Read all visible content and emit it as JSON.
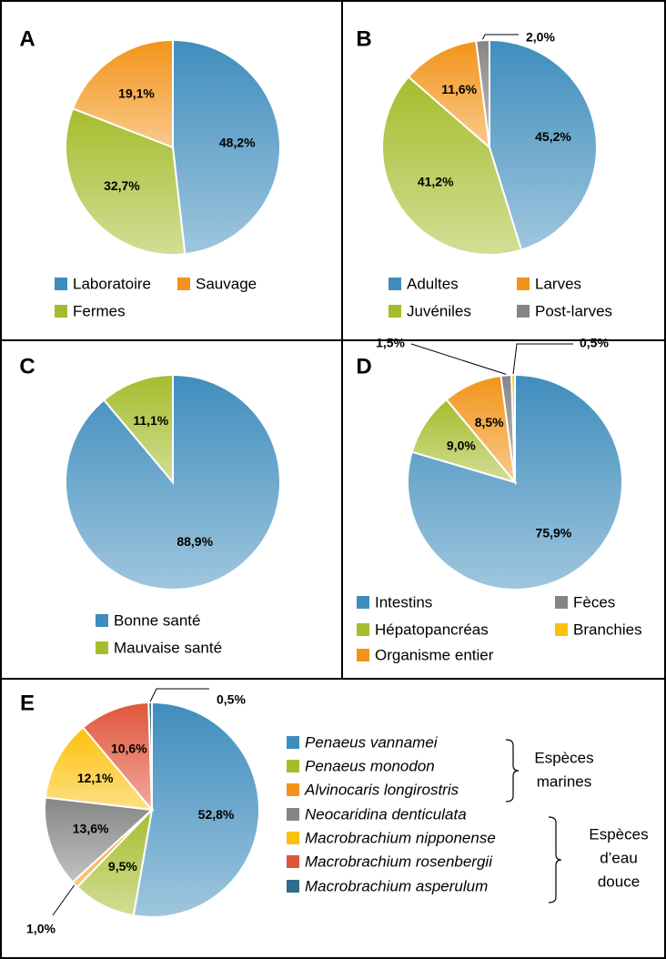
{
  "chart_data": [
    {
      "type": "pie",
      "label": "A",
      "categories": [
        "Laboratoire",
        "Fermes",
        "Sauvage"
      ],
      "values": [
        48.2,
        32.7,
        19.1
      ],
      "value_labels": [
        "48,2%",
        "32,7%",
        "19,1%"
      ],
      "colors": [
        "#3f8dbd",
        "#a5bd2c",
        "#f29419"
      ]
    },
    {
      "type": "pie",
      "label": "B",
      "categories": [
        "Adultes",
        "Juvéniles",
        "Larves",
        "Post-larves"
      ],
      "values": [
        45.2,
        41.2,
        11.6,
        2.0
      ],
      "value_labels": [
        "45,2%",
        "41,2%",
        "11,6%",
        "2,0%"
      ],
      "colors": [
        "#3f8dbd",
        "#a5bd2c",
        "#f29419",
        "#858585"
      ]
    },
    {
      "type": "pie",
      "label": "C",
      "categories": [
        "Bonne santé",
        "Mauvaise santé"
      ],
      "values": [
        88.9,
        11.1
      ],
      "value_labels": [
        "88,9%",
        "11,1%"
      ],
      "colors": [
        "#3f8dbd",
        "#a5bd2c"
      ]
    },
    {
      "type": "pie",
      "label": "D",
      "categories": [
        "Intestins",
        "Hépatopancréas",
        "Organisme entier",
        "Fèces",
        "Branchies"
      ],
      "values": [
        75.9,
        9.0,
        8.5,
        1.5,
        0.5
      ],
      "value_labels": [
        "75,9%",
        "9,0%",
        "8,5%",
        "1,5%",
        "0,5%"
      ],
      "colors": [
        "#3f8dbd",
        "#a5bd2c",
        "#f29419",
        "#858585",
        "#fcc10c"
      ]
    },
    {
      "type": "pie",
      "label": "E",
      "legend_italic": true,
      "categories": [
        "Penaeus vannamei",
        "Penaeus monodon",
        "Alvinocaris longirostris",
        "Neocaridina denticulata",
        "Macrobrachium nipponense",
        "Macrobrachium rosenbergii",
        "Macrobrachium asperulum"
      ],
      "values": [
        52.8,
        9.5,
        1.0,
        13.6,
        12.1,
        10.6,
        0.5
      ],
      "value_labels": [
        "52,8%",
        "9,5%",
        "1,0%",
        "13,6%",
        "12,1%",
        "10,6%",
        "0,5%"
      ],
      "colors": [
        "#3f8dbd",
        "#a5bd2c",
        "#f29419",
        "#858585",
        "#fcc10c",
        "#e0553a",
        "#2e6d8e"
      ],
      "groups": [
        {
          "lines": [
            "Espèces",
            "marines"
          ]
        },
        {
          "lines": [
            "Espèces",
            "d’eau",
            "douce"
          ]
        }
      ]
    }
  ]
}
